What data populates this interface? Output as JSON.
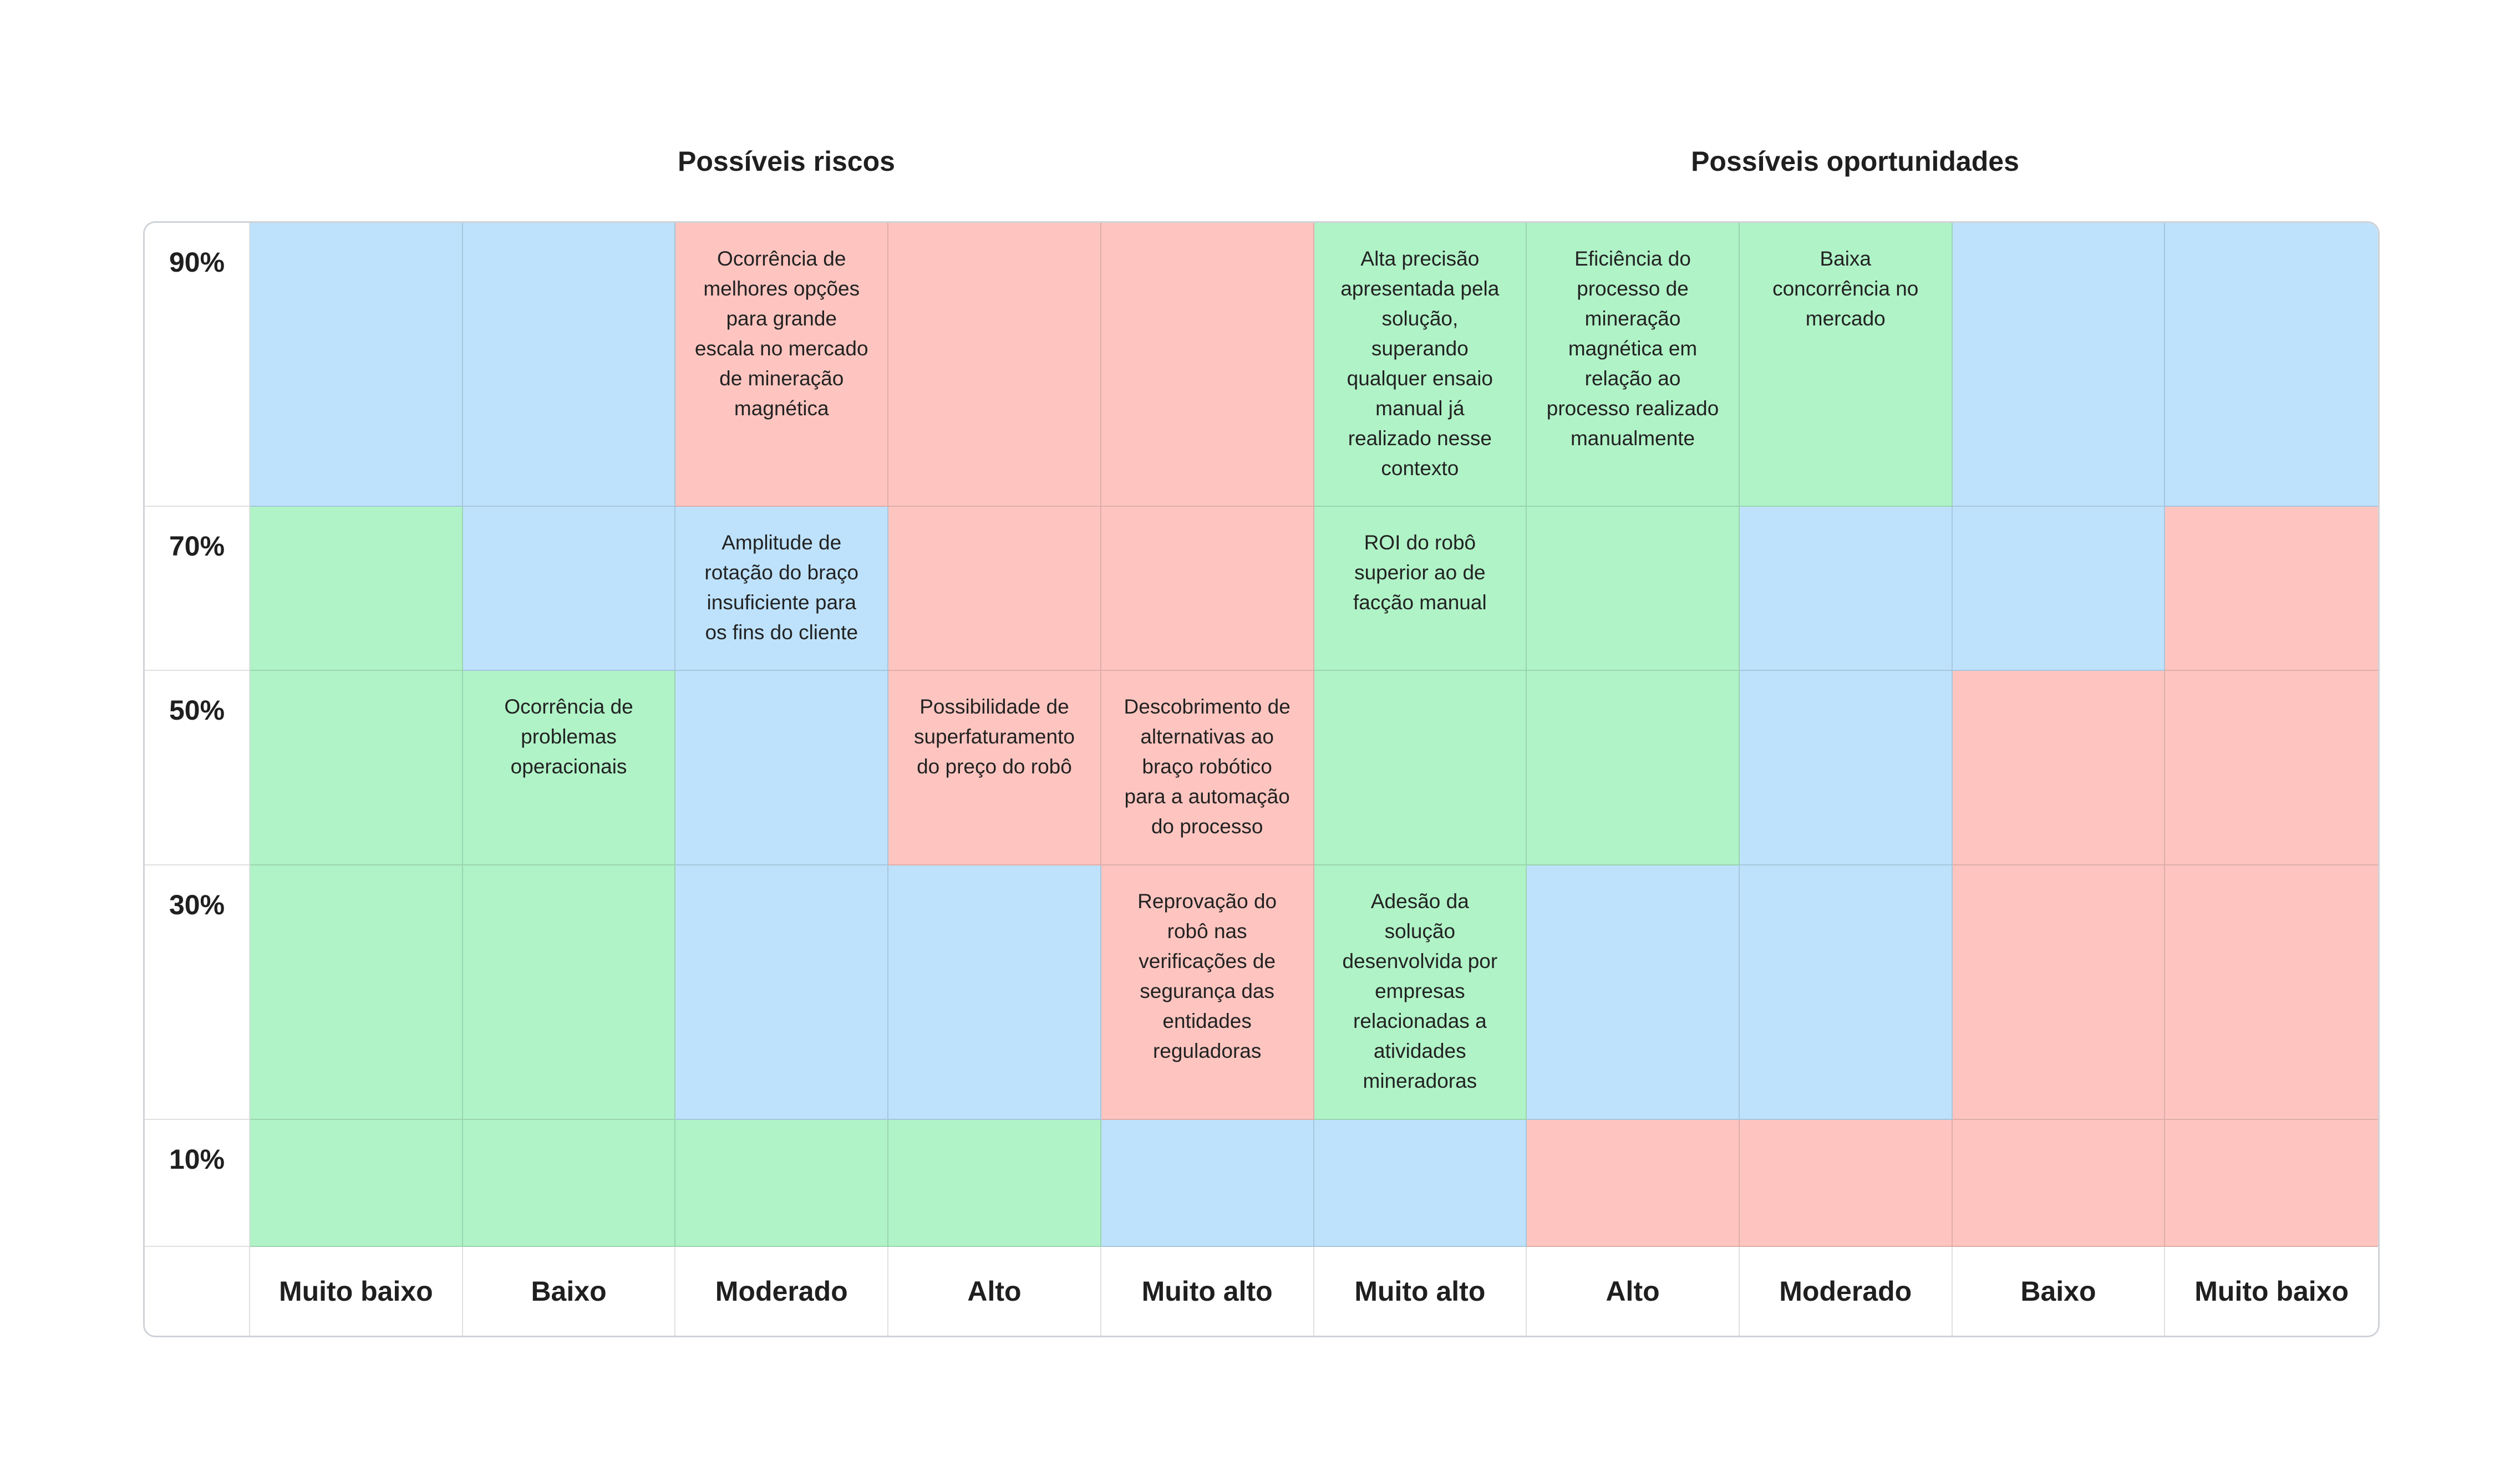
{
  "titles": {
    "risks": "Possíveis riscos",
    "opportunities": "Possíveis oportunidades"
  },
  "colors": {
    "blue": "#bee2fc",
    "green": "#b0f3c7",
    "red": "#fec5c0"
  },
  "columns": [
    "Muito baixo",
    "Baixo",
    "Moderado",
    "Alto",
    "Muito alto",
    "Muito alto",
    "Alto",
    "Moderado",
    "Baixo",
    "Muito baixo"
  ],
  "rows": [
    {
      "label": "90%",
      "colors": [
        "blue",
        "blue",
        "red",
        "red",
        "red",
        "green",
        "green",
        "green",
        "blue",
        "blue"
      ],
      "texts": [
        "",
        "",
        "Ocorrência de melhores opções para grande escala no mercado de mineração magnética",
        "",
        "",
        "Alta precisão apresentada pela solução, superando qualquer ensaio manual já realizado nesse contexto",
        "Eficiência do processo de mineração magnética em relação ao processo realizado manualmente",
        "Baixa concorrência no mercado",
        "",
        ""
      ]
    },
    {
      "label": "70%",
      "colors": [
        "green",
        "blue",
        "blue",
        "red",
        "red",
        "green",
        "green",
        "blue",
        "blue",
        "red"
      ],
      "texts": [
        "",
        "",
        "Amplitude de rotação do braço insuficiente para os fins do cliente",
        "",
        "",
        "ROI do robô superior ao de facção manual",
        "",
        "",
        "",
        ""
      ]
    },
    {
      "label": "50%",
      "colors": [
        "green",
        "green",
        "blue",
        "red",
        "red",
        "green",
        "green",
        "blue",
        "red",
        "red"
      ],
      "texts": [
        "",
        "Ocorrência de problemas operacionais",
        "",
        "Possibilidade de superfaturamento do preço do robô",
        "Descobrimento de alternativas ao braço robótico para a automação do processo",
        "",
        "",
        "",
        "",
        ""
      ]
    },
    {
      "label": "30%",
      "colors": [
        "green",
        "green",
        "blue",
        "blue",
        "red",
        "green",
        "blue",
        "blue",
        "red",
        "red"
      ],
      "texts": [
        "",
        "",
        "",
        "",
        "Reprovação do robô nas verificações de segurança das entidades reguladoras",
        "Adesão da solução desenvolvida por empresas relacionadas a atividades mineradoras",
        "",
        "",
        "",
        ""
      ]
    },
    {
      "label": "10%",
      "colors": [
        "green",
        "green",
        "green",
        "green",
        "blue",
        "blue",
        "red",
        "red",
        "red",
        "red"
      ],
      "texts": [
        "",
        "",
        "",
        "",
        "",
        "",
        "",
        "",
        "",
        ""
      ]
    }
  ]
}
